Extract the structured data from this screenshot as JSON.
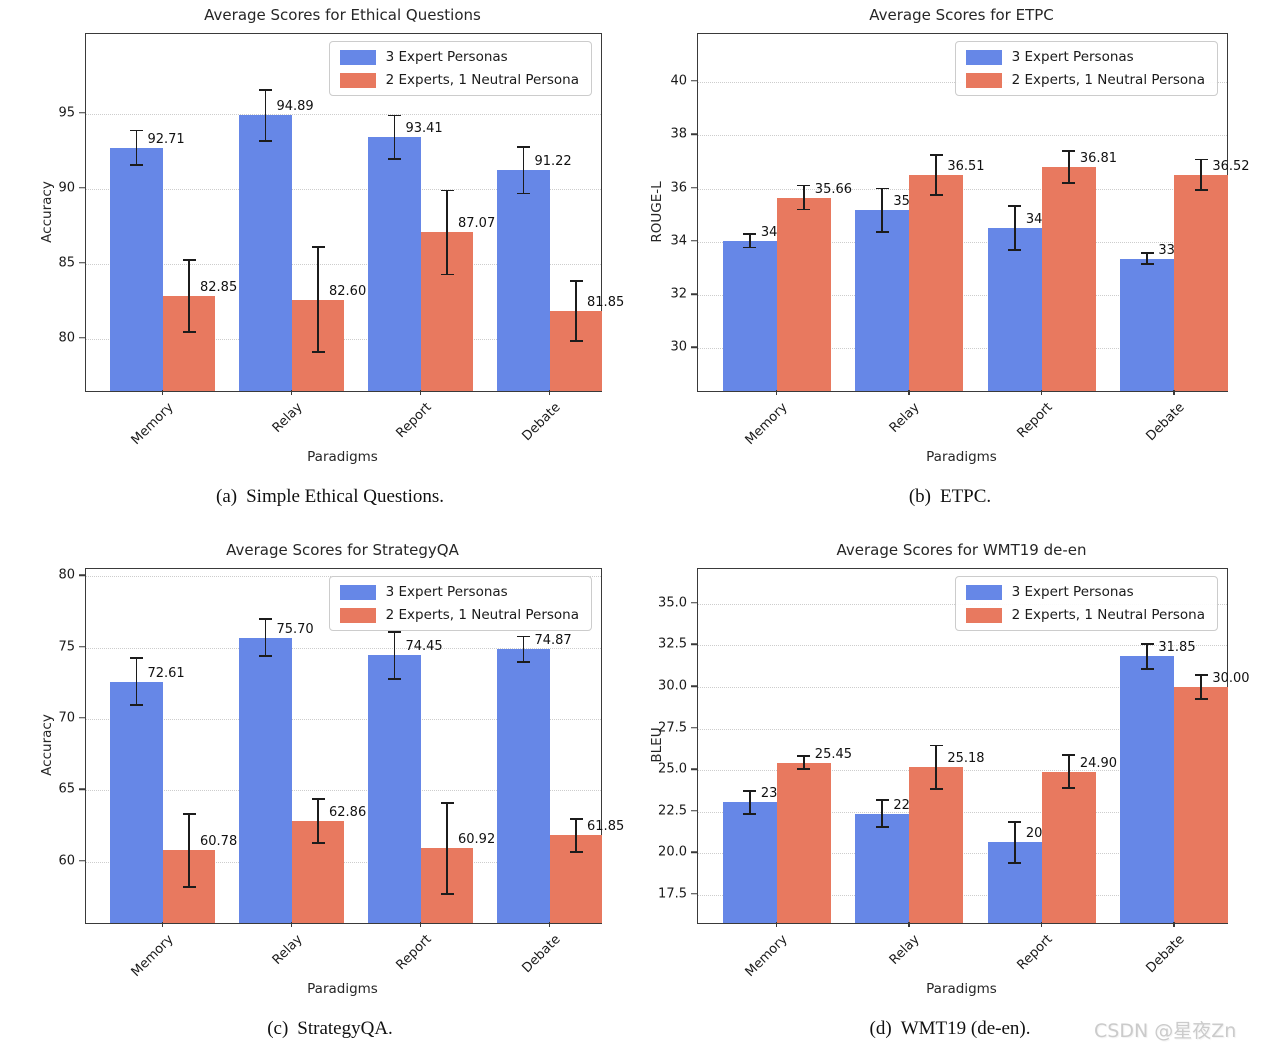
{
  "watermark": {
    "text": "CSDN @星夜Zn"
  },
  "colors": {
    "series1": "#6687e7",
    "series2": "#e8795f",
    "error_bar": "#1c1c1c",
    "grid_line": "#cdcdcd",
    "spine": "#3a3a3a"
  },
  "legend": [
    "3 Expert Personas",
    "2 Experts, 1 Neutral Persona"
  ],
  "chart_data": [
    {
      "type": "bar",
      "title": "Average Scores for Ethical Questions",
      "caption_label": "(a)",
      "caption_text": "Simple Ethical Questions.",
      "xlabel": "Paradigms",
      "ylabel": "Accuracy",
      "categories": [
        "Memory",
        "Relay",
        "Report",
        "Debate"
      ],
      "ylim": [
        76.5,
        100.3
      ],
      "ytick_values": [
        95,
        90,
        85,
        80
      ],
      "ytick_labels": [
        "95",
        "90",
        "85",
        "80"
      ],
      "grid": "horizontal-dotted",
      "legend_position": "upper-right",
      "series": [
        {
          "name": "3 Expert Personas",
          "values": [
            92.71,
            94.89,
            93.41,
            91.22
          ],
          "errors": [
            1.15,
            1.7,
            1.45,
            1.55
          ]
        },
        {
          "name": "2 Experts, 1 Neutral Persona",
          "values": [
            82.85,
            82.6,
            87.07,
            81.85
          ],
          "errors": [
            2.4,
            3.5,
            2.8,
            2.0
          ]
        }
      ]
    },
    {
      "type": "bar",
      "title": "Average Scores for ETPC",
      "caption_label": "(b)",
      "caption_text": "ETPC.",
      "xlabel": "Paradigms",
      "ylabel": "ROUGE-L",
      "categories": [
        "Memory",
        "Relay",
        "Report",
        "Debate"
      ],
      "ylim": [
        28.4,
        41.8
      ],
      "ytick_values": [
        40,
        38,
        36,
        34,
        32,
        30
      ],
      "ytick_labels": [
        "40",
        "38",
        "36",
        "34",
        "32",
        "30"
      ],
      "grid": "horizontal-dotted",
      "legend_position": "upper-right",
      "series": [
        {
          "name": "3 Expert Personas",
          "values": [
            34.04,
            35.18,
            34.51,
            33.37
          ],
          "errors": [
            0.25,
            0.82,
            0.82,
            0.2
          ]
        },
        {
          "name": "2 Experts, 1 Neutral Persona",
          "values": [
            35.66,
            36.51,
            36.81,
            36.52
          ],
          "errors": [
            0.45,
            0.75,
            0.6,
            0.57
          ]
        }
      ]
    },
    {
      "type": "bar",
      "title": "Average Scores for StrategyQA",
      "caption_label": "(c)",
      "caption_text": "StrategyQA.",
      "xlabel": "Paradigms",
      "ylabel": "Accuracy",
      "categories": [
        "Memory",
        "Relay",
        "Report",
        "Debate"
      ],
      "ylim": [
        55.7,
        80.5
      ],
      "ytick_values": [
        80,
        75,
        70,
        65,
        60
      ],
      "ytick_labels": [
        "80",
        "75",
        "70",
        "65",
        "60"
      ],
      "grid": "horizontal-dotted",
      "legend_position": "upper-right",
      "series": [
        {
          "name": "3 Expert Personas",
          "values": [
            72.61,
            75.7,
            74.45,
            74.87
          ],
          "errors": [
            1.65,
            1.27,
            1.65,
            0.9
          ]
        },
        {
          "name": "2 Experts, 1 Neutral Persona",
          "values": [
            60.78,
            62.86,
            60.92,
            61.85
          ],
          "errors": [
            2.55,
            1.55,
            3.2,
            1.15
          ]
        }
      ]
    },
    {
      "type": "bar",
      "title": "Average Scores for WMT19 de-en",
      "caption_label": "(d)",
      "caption_text": "WMT19 (de-en).",
      "xlabel": "Paradigms",
      "ylabel": "BLEU",
      "categories": [
        "Memory",
        "Relay",
        "Report",
        "Debate"
      ],
      "ylim": [
        15.8,
        37.1
      ],
      "ytick_values": [
        35.0,
        32.5,
        30.0,
        27.5,
        25.0,
        22.5,
        20.0,
        17.5
      ],
      "ytick_labels": [
        "35.0",
        "32.5",
        "30.0",
        "27.5",
        "25.0",
        "22.5",
        "20.0",
        "17.5"
      ],
      "grid": "horizontal-dotted",
      "legend_position": "upper-right",
      "series": [
        {
          "name": "3 Expert Personas",
          "values": [
            23.06,
            22.38,
            20.65,
            31.85
          ],
          "errors": [
            0.7,
            0.82,
            1.25,
            0.75
          ]
        },
        {
          "name": "2 Experts, 1 Neutral Persona",
          "values": [
            25.45,
            25.18,
            24.9,
            30.0
          ],
          "errors": [
            0.4,
            1.3,
            1.0,
            0.7
          ]
        }
      ]
    }
  ]
}
